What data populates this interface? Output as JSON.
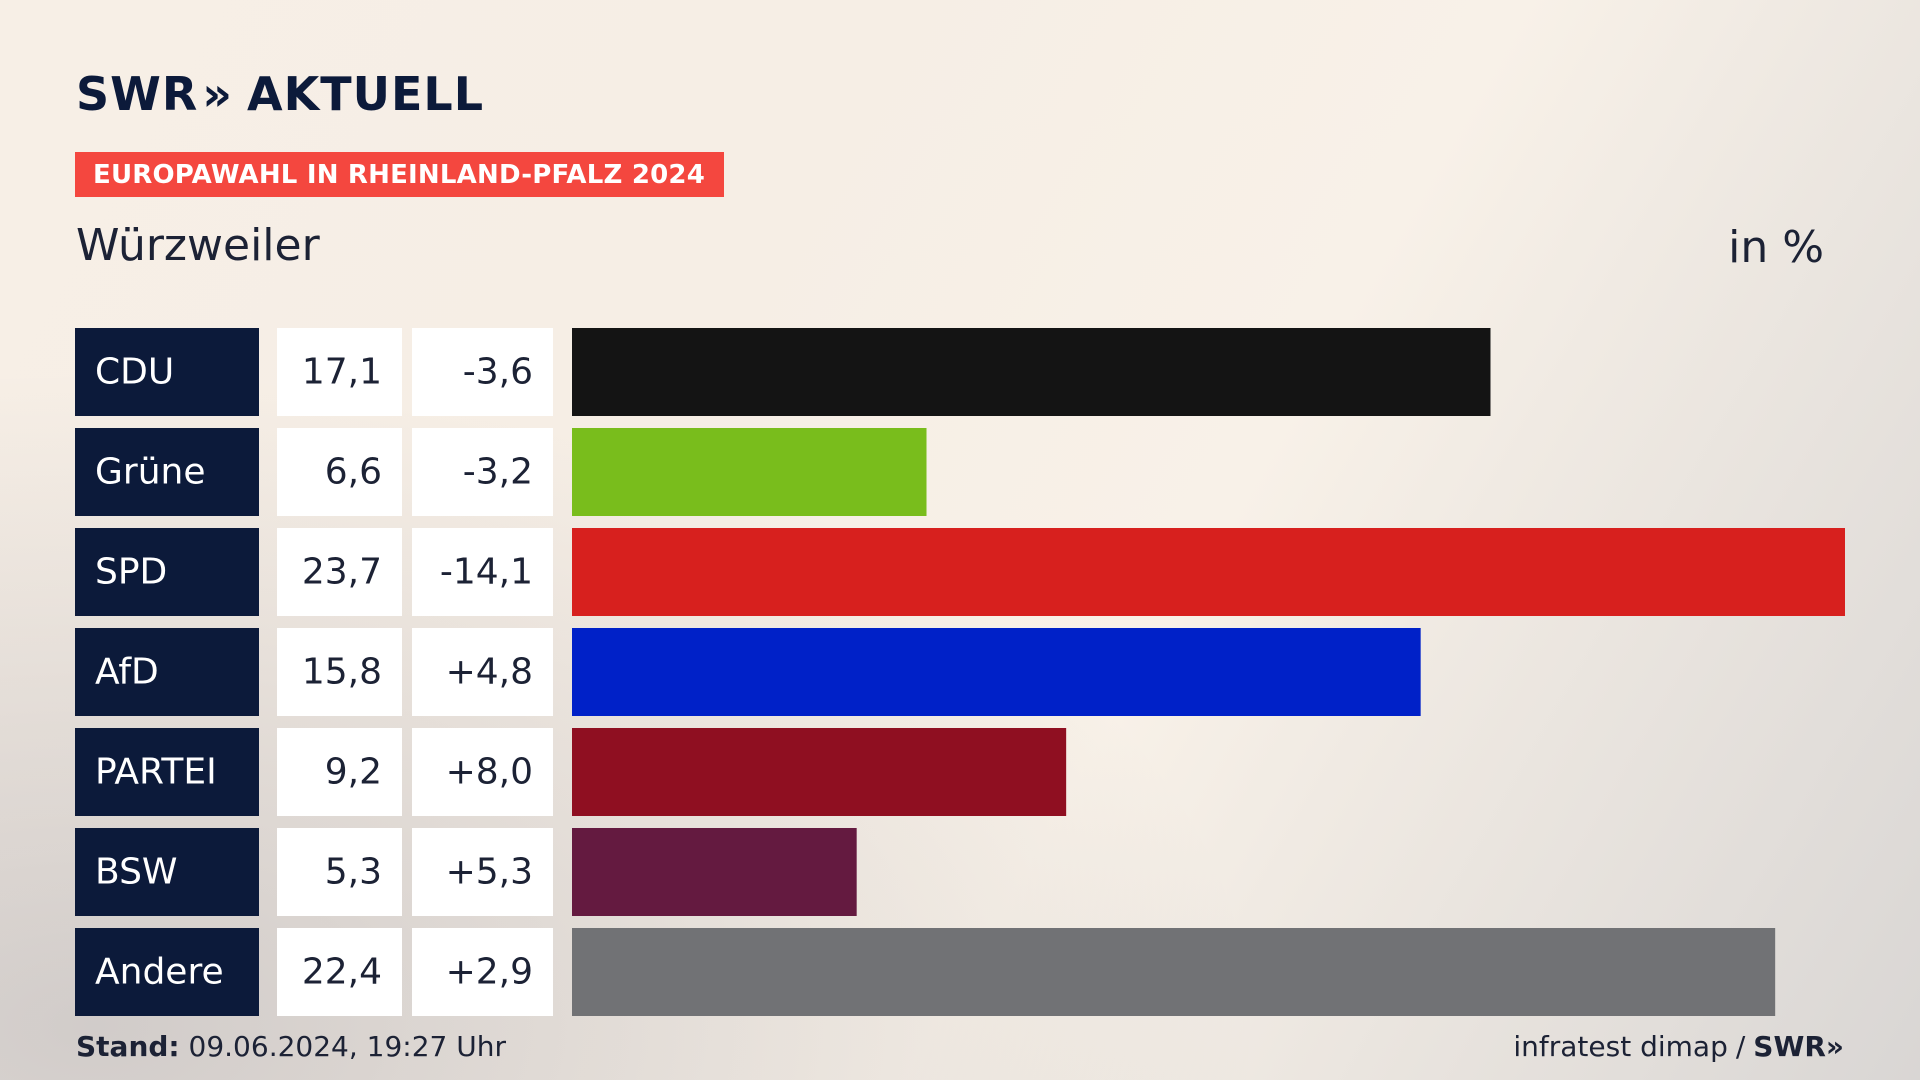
{
  "brand": {
    "logo_left": "SWR",
    "logo_chevrons": "»",
    "logo_right": "AKTUELL"
  },
  "banner": {
    "label": "EUROPAWAHL IN RHEINLAND-PFALZ 2024",
    "color": "#f4473f"
  },
  "header": {
    "place": "Würzweiler",
    "unit": "in %"
  },
  "footer": {
    "stand_label": "Stand:",
    "stand_value": "09.06.2024, 19:27 Uhr",
    "source": "infratest dimap",
    "separator": "/",
    "source_brand": "SWR»"
  },
  "chart_data": {
    "type": "bar",
    "orientation": "horizontal",
    "categories": [
      "CDU",
      "Grüne",
      "SPD",
      "AfD",
      "PARTEI",
      "BSW",
      "Andere"
    ],
    "values": [
      17.1,
      6.6,
      23.7,
      15.8,
      9.2,
      5.3,
      22.4
    ],
    "value_labels": [
      "17,1",
      "6,6",
      "23,7",
      "15,8",
      "9,2",
      "5,3",
      "22,4"
    ],
    "change_labels": [
      "-3,6",
      "-3,2",
      "-14,1",
      "+4,8",
      "+8,0",
      "+5,3",
      "+2,9"
    ],
    "changes": [
      -3.6,
      -3.2,
      -14.1,
      4.8,
      8.0,
      5.3,
      2.9
    ],
    "colors": [
      "#141414",
      "#79bd1c",
      "#d7201e",
      "#0021c8",
      "#8f0f21",
      "#641a40",
      "#717275"
    ],
    "xlim": [
      0,
      23.7
    ],
    "label_box_color": "#0c1a3a",
    "value_box_color": "#ffffff"
  }
}
